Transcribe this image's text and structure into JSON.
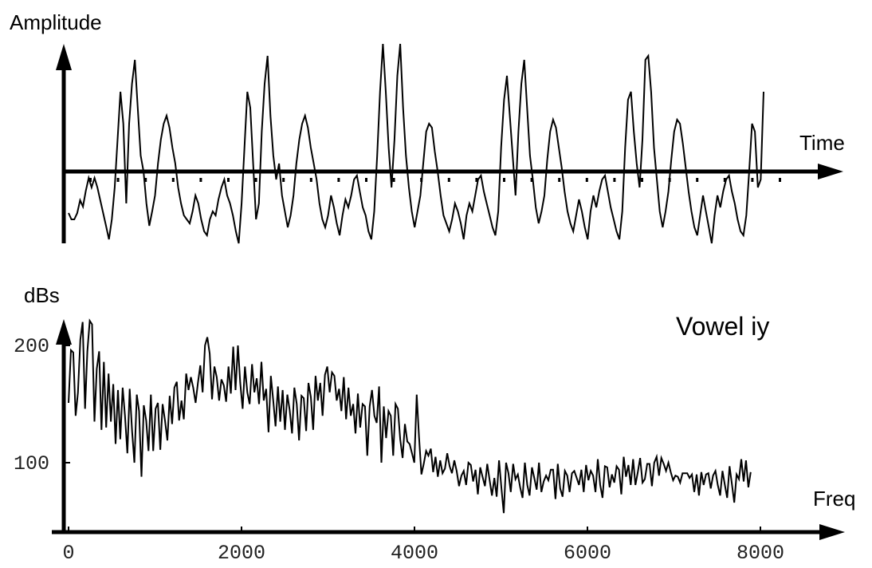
{
  "chart_data": [
    {
      "type": "line",
      "xlabel": "Time",
      "ylabel": "Amplitude",
      "grid": false,
      "series": [
        {
          "values": [
            -0.52,
            -0.6,
            -0.6,
            -0.52,
            -0.36,
            -0.44,
            -0.24,
            -0.08,
            -0.2,
            -0.08,
            -0.2,
            -0.36,
            -0.52,
            -0.68,
            -0.85,
            -0.6,
            -0.2,
            0.4,
            1.0,
            0.6,
            -0.4,
            0.6,
            1.1,
            1.4,
            0.8,
            0.2,
            0.0,
            -0.4,
            -0.68,
            -0.5,
            -0.3,
            0.1,
            0.4,
            0.6,
            0.7,
            0.55,
            0.3,
            0.1,
            -0.2,
            -0.4,
            -0.55,
            -0.6,
            -0.65,
            -0.5,
            -0.3,
            -0.4,
            -0.6,
            -0.75,
            -0.8,
            -0.6,
            -0.5,
            -0.55,
            -0.35,
            -0.2,
            -0.1,
            -0.3,
            -0.4,
            -0.55,
            -0.75,
            -0.9,
            -0.4,
            0.3,
            1.0,
            0.8,
            0.1,
            -0.6,
            -0.4,
            0.5,
            1.1,
            1.45,
            0.7,
            0.2,
            -0.1,
            0.1,
            -0.3,
            -0.5,
            -0.7,
            -0.55,
            -0.3,
            0.1,
            0.4,
            0.6,
            0.7,
            0.55,
            0.3,
            0.1,
            -0.1,
            -0.4,
            -0.6,
            -0.7,
            -0.55,
            -0.3,
            -0.45,
            -0.65,
            -0.8,
            -0.55,
            -0.35,
            -0.45,
            -0.3,
            -0.1,
            -0.05,
            -0.25,
            -0.45,
            -0.55,
            -0.75,
            -0.85,
            -0.5,
            0.2,
            1.0,
            1.6,
            1.0,
            0.3,
            -0.2,
            0.4,
            1.2,
            1.6,
            0.8,
            0.2,
            -0.2,
            -0.5,
            -0.7,
            -0.5,
            -0.3,
            0.1,
            0.5,
            0.6,
            0.55,
            0.25,
            0.0,
            -0.3,
            -0.55,
            -0.65,
            -0.75,
            -0.6,
            -0.4,
            -0.5,
            -0.65,
            -0.85,
            -0.55,
            -0.4,
            -0.5,
            -0.3,
            -0.1,
            -0.05,
            -0.25,
            -0.4,
            -0.55,
            -0.7,
            -0.8,
            -0.5,
            0.3,
            0.9,
            1.2,
            0.7,
            0.2,
            -0.3,
            0.5,
            1.1,
            1.4,
            0.8,
            0.2,
            -0.1,
            -0.45,
            -0.65,
            -0.5,
            -0.3,
            0.15,
            0.5,
            0.65,
            0.55,
            0.3,
            0.05,
            -0.25,
            -0.5,
            -0.65,
            -0.75,
            -0.55,
            -0.35,
            -0.5,
            -0.7,
            -0.85,
            -0.5,
            -0.3,
            -0.45,
            -0.25,
            -0.1,
            -0.05,
            -0.25,
            -0.45,
            -0.6,
            -0.75,
            -0.85,
            -0.5,
            0.3,
            0.9,
            1.0,
            0.5,
            0.1,
            -0.2,
            0.4,
            1.4,
            1.45,
            1.0,
            0.3,
            -0.1,
            -0.5,
            -0.7,
            -0.5,
            -0.25,
            0.15,
            0.5,
            0.65,
            0.6,
            0.35,
            0.05,
            -0.25,
            -0.5,
            -0.7,
            -0.8,
            -0.55,
            -0.3,
            -0.5,
            -0.7,
            -0.9,
            -0.55,
            -0.3,
            -0.45,
            -0.25,
            -0.1,
            -0.05,
            -0.25,
            -0.4,
            -0.6,
            -0.75,
            -0.8,
            -0.55,
            0.0,
            0.6,
            0.5,
            -0.2,
            -0.1,
            1.0
          ]
        }
      ]
    },
    {
      "type": "line",
      "title": "Vowel iy",
      "xlabel": "Freq",
      "ylabel": "dBs",
      "xlim": [
        0,
        8000
      ],
      "x_ticks": [
        "0",
        "2000",
        "4000",
        "6000",
        "8000"
      ],
      "y_ticks": [
        "100",
        "200"
      ],
      "grid": false,
      "series": [
        {
          "x_start": 0,
          "x_step": 27.2,
          "values": [
            151,
            196,
            194,
            140,
            160,
            205,
            220,
            146,
            195,
            221,
            218,
            135,
            180,
            195,
            128,
            186,
            130,
            176,
            135,
            167,
            116,
            162,
            120,
            164,
            140,
            108,
            163,
            127,
            100,
            158,
            144,
            88,
            149,
            136,
            110,
            158,
            110,
            146,
            151,
            111,
            150,
            136,
            119,
            157,
            133,
            164,
            169,
            136,
            153,
            137,
            176,
            162,
            173,
            164,
            151,
            168,
            183,
            160,
            200,
            207,
            193,
            154,
            182,
            173,
            153,
            171,
            166,
            152,
            182,
            159,
            199,
            162,
            200,
            168,
            146,
            182,
            160,
            150,
            184,
            160,
            172,
            150,
            186,
            153,
            163,
            126,
            174,
            153,
            131,
            165,
            135,
            162,
            128,
            158,
            145,
            125,
            164,
            150,
            119,
            157,
            155,
            127,
            168,
            156,
            128,
            174,
            153,
            168,
            140,
            175,
            182,
            160,
            177,
            174,
            153,
            163,
            144,
            173,
            137,
            164,
            140,
            150,
            125,
            159,
            130,
            150,
            148,
            106,
            148,
            162,
            140,
            134,
            165,
            100,
            148,
            121,
            144,
            140,
            106,
            150,
            146,
            120,
            104,
            133,
            118,
            116,
            108,
            100,
            158,
            122,
            90,
            99,
            110,
            106,
            112,
            92,
            105,
            88,
            102,
            91,
            95,
            108,
            97,
            91,
            102,
            93,
            80,
            89,
            93,
            81,
            100,
            98,
            84,
            94,
            73,
            96,
            88,
            80,
            99,
            85,
            72,
            87,
            71,
            102,
            79,
            57,
            100,
            91,
            75,
            99,
            86,
            90,
            79,
            70,
            100,
            81,
            72,
            96,
            87,
            77,
            100,
            75,
            84,
            89,
            85,
            94,
            94,
            69,
            99,
            78,
            71,
            93,
            89,
            75,
            91,
            93,
            87,
            81,
            94,
            75,
            98,
            85,
            93,
            89,
            75,
            103,
            81,
            70,
            97,
            96,
            79,
            90,
            83,
            97,
            94,
            73,
            105,
            88,
            98,
            81,
            103,
            81,
            92,
            104,
            83,
            86,
            99,
            99,
            80,
            100,
            105,
            89,
            104,
            99,
            93,
            100,
            92,
            85,
            89,
            88,
            83,
            91,
            91,
            91,
            87,
            90,
            75,
            90,
            72,
            92,
            81,
            90,
            91,
            78,
            89,
            93,
            81,
            72,
            93,
            81,
            70,
            97,
            82,
            66,
            90,
            86,
            103,
            84,
            102,
            79,
            92
          ]
        }
      ]
    }
  ]
}
